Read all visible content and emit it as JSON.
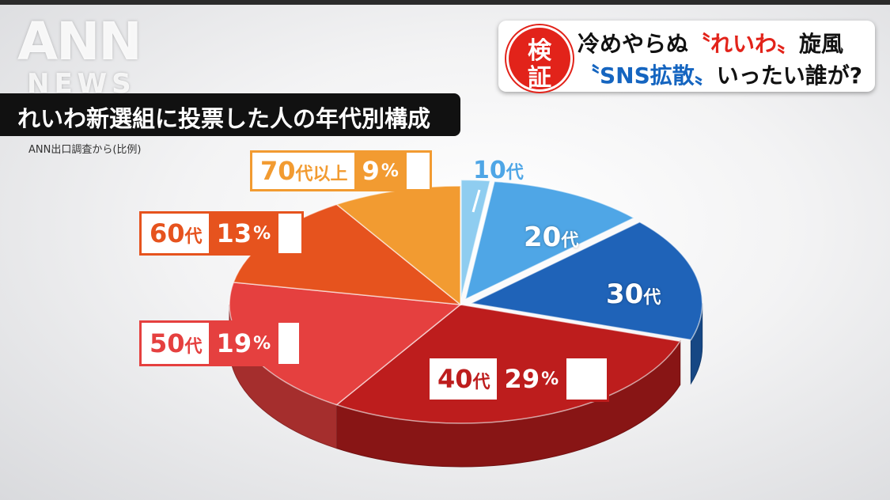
{
  "logo": {
    "top": "ANN",
    "bottom": "NEWS"
  },
  "headline": {
    "badge_line1": "検",
    "badge_line2": "証",
    "line1_a": "冷めやらぬ",
    "line1_b": "〝れいわ〟",
    "line1_c": "旋風",
    "line2_a": "〝SNS拡散〟",
    "line2_b": "いったい誰が?"
  },
  "colors": {
    "10代": "#8fcdf0",
    "20代": "#4fa6e6",
    "30代": "#1f63b8",
    "40代": "#bd1d1d",
    "50代": "#e5403f",
    "60代": "#e6531e",
    "70代以上": "#f29b31"
  },
  "chart_data": {
    "type": "pie",
    "title": "れいわ新選組に投票した人の年代別構成",
    "subtitle": "ANN出口調査から(比例)",
    "categories": [
      "10代",
      "20代",
      "30代",
      "40代",
      "50代",
      "60代",
      "70代以上"
    ],
    "values": [
      2,
      11,
      17,
      29,
      19,
      13,
      9
    ],
    "value_labels": [
      "",
      "",
      "",
      "29",
      "19",
      "13",
      "9"
    ],
    "unit": "%",
    "exploded": [
      "10代",
      "20代",
      "30代"
    ]
  }
}
